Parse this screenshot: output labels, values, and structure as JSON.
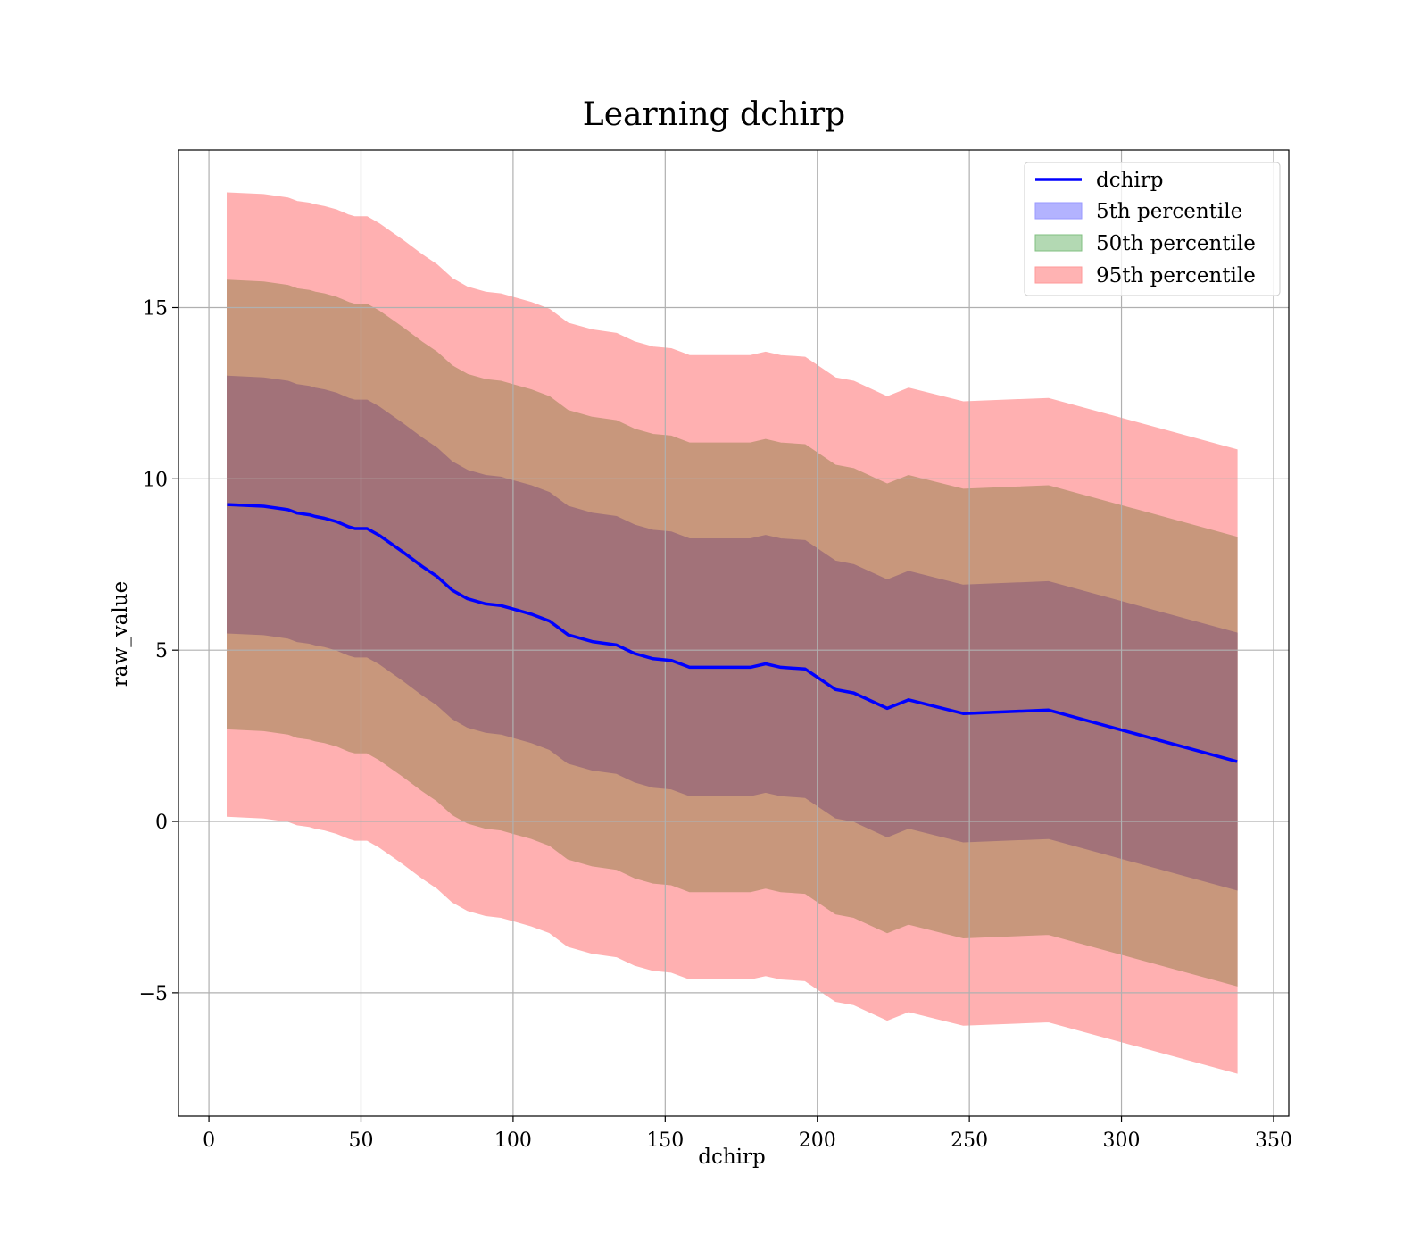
{
  "chart_data": {
    "type": "line",
    "title": "Learning dchirp",
    "xlabel": "dchirp",
    "ylabel": "raw_value",
    "xlim": [
      -10,
      355
    ],
    "ylim": [
      -8.6,
      19.6
    ],
    "xticks": [
      0,
      50,
      100,
      150,
      200,
      250,
      300,
      350
    ],
    "yticks": [
      -5,
      0,
      5,
      10,
      15
    ],
    "xtick_labels": [
      "0",
      "50",
      "100",
      "150",
      "200",
      "250",
      "300",
      "350"
    ],
    "ytick_labels": [
      "−5",
      "0",
      "5",
      "10",
      "15"
    ],
    "grid": true,
    "legend_position": "top-right",
    "colors": {
      "line": "#0000ff",
      "band_5th": "#0000ff",
      "band_50th": "#008000",
      "band_95th": "#ff0000",
      "visible_inner": "#a27279",
      "visible_middle": "#c8977c",
      "visible_outer": "#ffb0b1"
    },
    "legend": [
      {
        "label": "dchirp",
        "kind": "line",
        "color": "#0000ff"
      },
      {
        "label": "5th percentile",
        "kind": "patch",
        "color": "#b3b3ff",
        "edge": "#9999ff"
      },
      {
        "label": "50th percentile",
        "kind": "patch",
        "color": "#b3d9b3",
        "edge": "#80c080"
      },
      {
        "label": "95th percentile",
        "kind": "patch",
        "color": "#ffb3b3",
        "edge": "#ff9999"
      }
    ],
    "series": [
      {
        "name": "dchirp",
        "x": [
          6,
          18,
          26,
          29,
          33,
          35,
          38,
          42,
          46,
          48,
          52,
          56,
          60,
          64,
          70,
          75,
          80,
          85,
          91,
          96,
          100,
          106,
          112,
          118,
          126,
          134,
          140,
          146,
          152,
          158,
          166,
          172,
          178,
          183,
          188,
          196,
          206,
          212,
          223,
          230,
          248,
          276,
          338
        ],
        "y": [
          9.25,
          9.2,
          9.1,
          9.0,
          8.95,
          8.9,
          8.85,
          8.75,
          8.6,
          8.55,
          8.55,
          8.35,
          8.1,
          7.85,
          7.45,
          7.15,
          6.75,
          6.5,
          6.35,
          6.3,
          6.2,
          6.05,
          5.85,
          5.45,
          5.25,
          5.15,
          4.9,
          4.75,
          4.7,
          4.5,
          4.5,
          4.5,
          4.5,
          4.6,
          4.5,
          4.45,
          3.85,
          3.75,
          3.3,
          3.55,
          3.15,
          3.25,
          1.75
        ]
      }
    ],
    "bands": [
      {
        "name": "5th percentile",
        "offset": 3.75
      },
      {
        "name": "50th percentile",
        "offset": 6.55
      },
      {
        "name": "95th percentile",
        "offset": 9.1
      }
    ]
  }
}
